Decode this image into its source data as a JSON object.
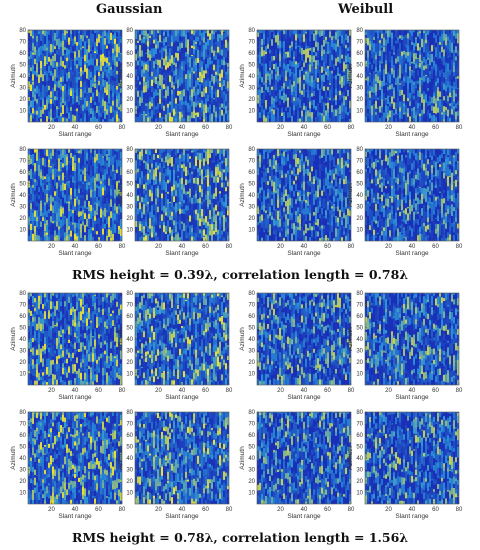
{
  "headers": {
    "left": "Gaussian",
    "right": "Weibull"
  },
  "captions": [
    "RMS height = 0.39λ, correlation length = 0.78λ",
    "RMS height = 0.78λ, correlation length = 1.56λ"
  ],
  "colors": {
    "low": "#1a2fb8",
    "mid": "#2a8fd8",
    "high": "#f0e030"
  },
  "chart_data": {
    "type": "heatmap",
    "xlabel": "Slant range",
    "ylabel": "Azimuth",
    "xlim": [
      0,
      80
    ],
    "ylim": [
      0,
      80
    ],
    "xticks": [
      20,
      40,
      60,
      80
    ],
    "yticks": [
      10,
      20,
      30,
      40,
      50,
      60,
      70,
      80
    ],
    "grid": false,
    "panels": [
      {
        "group": 0,
        "row": 0,
        "col": 0,
        "distribution": "Gaussian",
        "seed": 11
      },
      {
        "group": 0,
        "row": 0,
        "col": 1,
        "distribution": "Gaussian",
        "seed": 23
      },
      {
        "group": 0,
        "row": 0,
        "col": 2,
        "distribution": "Weibull",
        "seed": 37
      },
      {
        "group": 0,
        "row": 0,
        "col": 3,
        "distribution": "Weibull",
        "seed": 41
      },
      {
        "group": 0,
        "row": 1,
        "col": 0,
        "distribution": "Gaussian",
        "seed": 53
      },
      {
        "group": 0,
        "row": 1,
        "col": 1,
        "distribution": "Gaussian",
        "seed": 67
      },
      {
        "group": 0,
        "row": 1,
        "col": 2,
        "distribution": "Weibull",
        "seed": 71
      },
      {
        "group": 0,
        "row": 1,
        "col": 3,
        "distribution": "Weibull",
        "seed": 83
      },
      {
        "group": 1,
        "row": 0,
        "col": 0,
        "distribution": "Gaussian",
        "seed": 97
      },
      {
        "group": 1,
        "row": 0,
        "col": 1,
        "distribution": "Gaussian",
        "seed": 101
      },
      {
        "group": 1,
        "row": 0,
        "col": 2,
        "distribution": "Weibull",
        "seed": 113
      },
      {
        "group": 1,
        "row": 0,
        "col": 3,
        "distribution": "Weibull",
        "seed": 127
      },
      {
        "group": 1,
        "row": 1,
        "col": 0,
        "distribution": "Gaussian",
        "seed": 131
      },
      {
        "group": 1,
        "row": 1,
        "col": 1,
        "distribution": "Gaussian",
        "seed": 149
      },
      {
        "group": 1,
        "row": 1,
        "col": 2,
        "distribution": "Weibull",
        "seed": 157
      },
      {
        "group": 1,
        "row": 1,
        "col": 3,
        "distribution": "Weibull",
        "seed": 163
      }
    ]
  }
}
